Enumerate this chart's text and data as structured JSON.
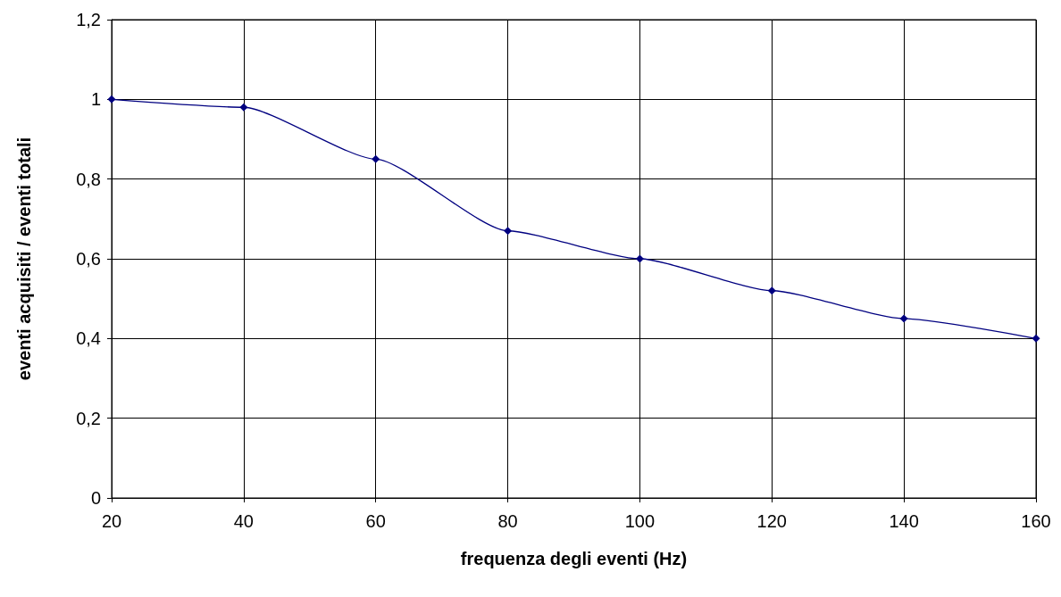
{
  "chart_data": {
    "type": "line",
    "xlabel": "frequenza degli eventi (Hz)",
    "ylabel": "eventi acquisiti / eventi totali",
    "x": [
      20,
      40,
      60,
      80,
      100,
      120,
      140,
      160
    ],
    "series": [
      {
        "color": "#000080",
        "values": [
          1.0,
          0.98,
          0.85,
          0.67,
          0.6,
          0.52,
          0.45,
          0.4
        ]
      }
    ],
    "xlim": [
      20,
      160
    ],
    "xticks": [
      20,
      40,
      60,
      80,
      100,
      120,
      140,
      160
    ],
    "ylim": [
      0,
      1.2
    ],
    "yticks": [
      0,
      {
        "value": 0.2,
        "label": "0,2"
      },
      {
        "value": 0.4,
        "label": "0,4"
      },
      {
        "value": 0.6,
        "label": "0,6"
      },
      {
        "value": 0.8,
        "label": "0,8"
      },
      1,
      {
        "value": 1.2,
        "label": "1,2"
      }
    ],
    "grid": true,
    "marker": "diamond",
    "line_style": "solid"
  }
}
